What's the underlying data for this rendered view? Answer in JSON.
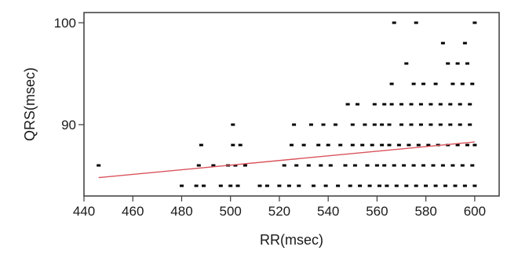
{
  "chart_data": {
    "type": "scatter",
    "xlabel": "RR(msec)",
    "ylabel": "QRS(msec)",
    "xlim": [
      440,
      610
    ],
    "ylim": [
      83,
      101
    ],
    "x_ticks": [
      440,
      460,
      480,
      500,
      520,
      540,
      560,
      580,
      600
    ],
    "y_ticks": [
      90,
      100
    ],
    "grid": false,
    "colors": {
      "points": "#000000",
      "fit_line": "#d9535b",
      "frame": "#3a3a3a"
    },
    "fit_line": {
      "x": [
        446,
        600
      ],
      "y": [
        84.8,
        88.3
      ]
    },
    "series": [
      {
        "points": [
          [
            446,
            86
          ],
          [
            480,
            84
          ],
          [
            486,
            84
          ],
          [
            487,
            86
          ],
          [
            488,
            88
          ],
          [
            489,
            84
          ],
          [
            493,
            86
          ],
          [
            496,
            84
          ],
          [
            499,
            86
          ],
          [
            500,
            84
          ],
          [
            501,
            88
          ],
          [
            501,
            90
          ],
          [
            502,
            86
          ],
          [
            503,
            84
          ],
          [
            504,
            88
          ],
          [
            506,
            86
          ],
          [
            512,
            84
          ],
          [
            515,
            84
          ],
          [
            520,
            84
          ],
          [
            522,
            86
          ],
          [
            524,
            84
          ],
          [
            525,
            88
          ],
          [
            526,
            90
          ],
          [
            527,
            86
          ],
          [
            528,
            84
          ],
          [
            530,
            88
          ],
          [
            532,
            86
          ],
          [
            533,
            90
          ],
          [
            534,
            84
          ],
          [
            536,
            88
          ],
          [
            537,
            86
          ],
          [
            538,
            90
          ],
          [
            539,
            84
          ],
          [
            540,
            88
          ],
          [
            541,
            86
          ],
          [
            543,
            90
          ],
          [
            544,
            84
          ],
          [
            545,
            88
          ],
          [
            547,
            86
          ],
          [
            548,
            92
          ],
          [
            549,
            84
          ],
          [
            550,
            88
          ],
          [
            550,
            90
          ],
          [
            551,
            86
          ],
          [
            552,
            92
          ],
          [
            553,
            84
          ],
          [
            554,
            88
          ],
          [
            555,
            90
          ],
          [
            556,
            86
          ],
          [
            557,
            84
          ],
          [
            558,
            88
          ],
          [
            559,
            90
          ],
          [
            559,
            92
          ],
          [
            560,
            86
          ],
          [
            561,
            84
          ],
          [
            562,
            88
          ],
          [
            562,
            90
          ],
          [
            563,
            92
          ],
          [
            563,
            86
          ],
          [
            564,
            84
          ],
          [
            565,
            88
          ],
          [
            565,
            90
          ],
          [
            566,
            92
          ],
          [
            566,
            94
          ],
          [
            567,
            86
          ],
          [
            567,
            100
          ],
          [
            568,
            84
          ],
          [
            569,
            88
          ],
          [
            570,
            90
          ],
          [
            570,
            92
          ],
          [
            571,
            86
          ],
          [
            572,
            84
          ],
          [
            572,
            96
          ],
          [
            573,
            88
          ],
          [
            574,
            90
          ],
          [
            574,
            92
          ],
          [
            575,
            86
          ],
          [
            575,
            94
          ],
          [
            576,
            84
          ],
          [
            576,
            100
          ],
          [
            577,
            88
          ],
          [
            578,
            90
          ],
          [
            578,
            92
          ],
          [
            579,
            86
          ],
          [
            579,
            94
          ],
          [
            580,
            84
          ],
          [
            581,
            88
          ],
          [
            582,
            90
          ],
          [
            582,
            92
          ],
          [
            583,
            86
          ],
          [
            584,
            84
          ],
          [
            584,
            94
          ],
          [
            585,
            88
          ],
          [
            586,
            90
          ],
          [
            586,
            92
          ],
          [
            587,
            86
          ],
          [
            587,
            98
          ],
          [
            588,
            84
          ],
          [
            589,
            88
          ],
          [
            589,
            96
          ],
          [
            590,
            90
          ],
          [
            590,
            92
          ],
          [
            591,
            86
          ],
          [
            591,
            94
          ],
          [
            592,
            84
          ],
          [
            593,
            88
          ],
          [
            593,
            96
          ],
          [
            594,
            90
          ],
          [
            594,
            92
          ],
          [
            595,
            86
          ],
          [
            595,
            94
          ],
          [
            596,
            84
          ],
          [
            596,
            98
          ],
          [
            597,
            88
          ],
          [
            597,
            96
          ],
          [
            598,
            90
          ],
          [
            598,
            92
          ],
          [
            599,
            86
          ],
          [
            599,
            94
          ],
          [
            600,
            84
          ],
          [
            600,
            88
          ],
          [
            600,
            100
          ]
        ]
      }
    ]
  }
}
